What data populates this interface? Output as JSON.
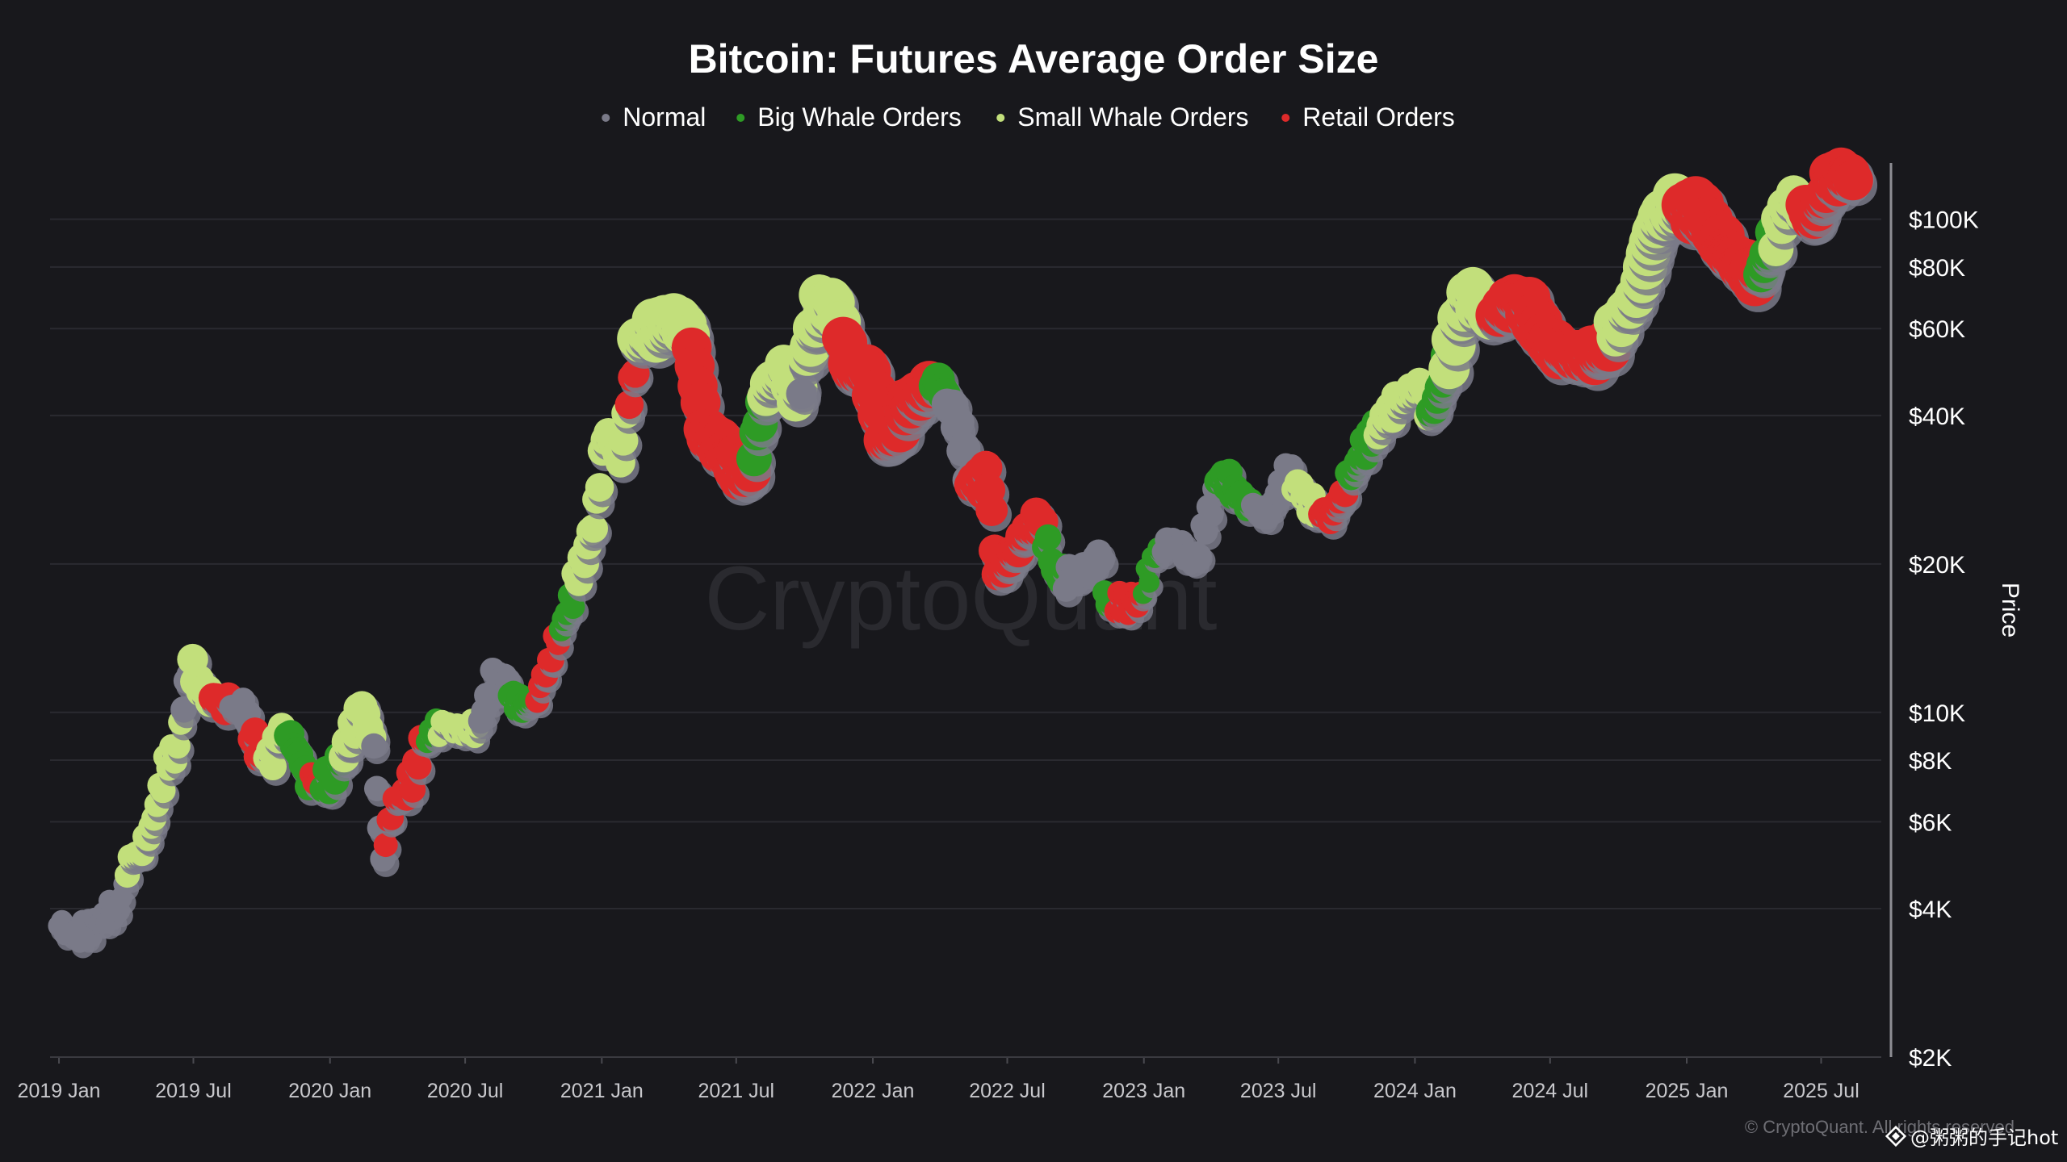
{
  "chart_data": {
    "type": "scatter",
    "title": "Bitcoin: Futures Average Order Size",
    "ylabel": "Price",
    "xlabel": "",
    "y_scale": "log",
    "ylim": [
      2000,
      130000
    ],
    "xlim": [
      "2018-12-20",
      "2025-09-20"
    ],
    "grid": "horizontal",
    "legend_position": "top-center",
    "watermark": "CryptoQuant",
    "copyright": "© CryptoQuant. All rights reserved",
    "credit": "@粥粥的手记hot",
    "y_ticks": [
      {
        "value": 2000,
        "label": "$2K"
      },
      {
        "value": 4000,
        "label": "$4K"
      },
      {
        "value": 6000,
        "label": "$6K"
      },
      {
        "value": 8000,
        "label": "$8K"
      },
      {
        "value": 10000,
        "label": "$10K"
      },
      {
        "value": 20000,
        "label": "$20K"
      },
      {
        "value": 40000,
        "label": "$40K"
      },
      {
        "value": 60000,
        "label": "$60K"
      },
      {
        "value": 80000,
        "label": "$80K"
      },
      {
        "value": 100000,
        "label": "$100K"
      }
    ],
    "x_ticks": [
      {
        "date": "2019-01-01",
        "label": "2019 Jan"
      },
      {
        "date": "2019-07-01",
        "label": "2019 Jul"
      },
      {
        "date": "2020-01-01",
        "label": "2020 Jan"
      },
      {
        "date": "2020-07-01",
        "label": "2020 Jul"
      },
      {
        "date": "2021-01-01",
        "label": "2021 Jan"
      },
      {
        "date": "2021-07-01",
        "label": "2021 Jul"
      },
      {
        "date": "2022-01-01",
        "label": "2022 Jan"
      },
      {
        "date": "2022-07-01",
        "label": "2022 Jul"
      },
      {
        "date": "2023-01-01",
        "label": "2023 Jan"
      },
      {
        "date": "2023-07-01",
        "label": "2023 Jul"
      },
      {
        "date": "2024-01-01",
        "label": "2024 Jan"
      },
      {
        "date": "2024-07-01",
        "label": "2024 Jul"
      },
      {
        "date": "2025-01-01",
        "label": "2025 Jan"
      },
      {
        "date": "2025-07-01",
        "label": "2025 Jul"
      }
    ],
    "series": [
      {
        "name": "Normal",
        "color": "#7a7a88"
      },
      {
        "name": "Big Whale Orders",
        "color": "#2e9b25"
      },
      {
        "name": "Small Whale Orders",
        "color": "#c2df7b"
      },
      {
        "name": "Retail Orders",
        "color": "#de2a2a"
      }
    ],
    "price_path": [
      [
        "2019-01-01",
        3700
      ],
      [
        "2019-01-20",
        3550
      ],
      [
        "2019-02-10",
        3650
      ],
      [
        "2019-03-01",
        3850
      ],
      [
        "2019-03-25",
        4050
      ],
      [
        "2019-04-05",
        5000
      ],
      [
        "2019-04-25",
        5300
      ],
      [
        "2019-05-10",
        6200
      ],
      [
        "2019-05-25",
        7800
      ],
      [
        "2019-06-10",
        8500
      ],
      [
        "2019-06-26",
        12500
      ],
      [
        "2019-07-15",
        11000
      ],
      [
        "2019-08-05",
        10500
      ],
      [
        "2019-08-25",
        10300
      ],
      [
        "2019-09-10",
        10100
      ],
      [
        "2019-09-25",
        8400
      ],
      [
        "2019-10-15",
        8100
      ],
      [
        "2019-10-28",
        9300
      ],
      [
        "2019-11-15",
        8600
      ],
      [
        "2019-12-01",
        7400
      ],
      [
        "2019-12-18",
        7100
      ],
      [
        "2020-01-05",
        7400
      ],
      [
        "2020-01-25",
        8600
      ],
      [
        "2020-02-13",
        10300
      ],
      [
        "2020-02-28",
        8700
      ],
      [
        "2020-03-12",
        5000
      ],
      [
        "2020-03-25",
        6500
      ],
      [
        "2020-04-20",
        7200
      ],
      [
        "2020-05-05",
        8800
      ],
      [
        "2020-06-01",
        9500
      ],
      [
        "2020-06-25",
        9200
      ],
      [
        "2020-07-20",
        9300
      ],
      [
        "2020-08-05",
        11500
      ],
      [
        "2020-08-25",
        11600
      ],
      [
        "2020-09-10",
        10300
      ],
      [
        "2020-10-05",
        10700
      ],
      [
        "2020-10-25",
        13000
      ],
      [
        "2020-11-15",
        16000
      ],
      [
        "2020-12-01",
        19000
      ],
      [
        "2020-12-20",
        23500
      ],
      [
        "2021-01-08",
        38000
      ],
      [
        "2021-01-25",
        32000
      ],
      [
        "2021-02-10",
        46000
      ],
      [
        "2021-02-21",
        57000
      ],
      [
        "2021-03-13",
        60000
      ],
      [
        "2021-04-14",
        63000
      ],
      [
        "2021-05-01",
        57000
      ],
      [
        "2021-05-19",
        37000
      ],
      [
        "2021-06-10",
        35000
      ],
      [
        "2021-06-25",
        32000
      ],
      [
        "2021-07-20",
        30500
      ],
      [
        "2021-08-10",
        45000
      ],
      [
        "2021-09-05",
        50500
      ],
      [
        "2021-09-21",
        42500
      ],
      [
        "2021-10-20",
        66000
      ],
      [
        "2021-11-10",
        67500
      ],
      [
        "2021-12-05",
        49000
      ],
      [
        "2021-12-25",
        50000
      ],
      [
        "2022-01-22",
        35000
      ],
      [
        "2022-02-15",
        42000
      ],
      [
        "2022-03-28",
        47000
      ],
      [
        "2022-04-25",
        39000
      ],
      [
        "2022-05-12",
        29000
      ],
      [
        "2022-06-05",
        30000
      ],
      [
        "2022-06-18",
        19000
      ],
      [
        "2022-07-10",
        21000
      ],
      [
        "2022-07-28",
        23500
      ],
      [
        "2022-08-14",
        24500
      ],
      [
        "2022-09-06",
        18800
      ],
      [
        "2022-10-10",
        19200
      ],
      [
        "2022-11-05",
        21000
      ],
      [
        "2022-11-10",
        16500
      ],
      [
        "2022-12-25",
        16800
      ],
      [
        "2023-01-15",
        20800
      ],
      [
        "2023-02-10",
        22500
      ],
      [
        "2023-03-10",
        20000
      ],
      [
        "2023-04-14",
        30500
      ],
      [
        "2023-05-15",
        27000
      ],
      [
        "2023-06-15",
        25000
      ],
      [
        "2023-07-14",
        31000
      ],
      [
        "2023-08-17",
        26000
      ],
      [
        "2023-09-11",
        25000
      ],
      [
        "2023-10-24",
        34500
      ],
      [
        "2023-12-05",
        42000
      ],
      [
        "2024-01-10",
        46500
      ],
      [
        "2024-01-23",
        39500
      ],
      [
        "2024-02-15",
        52000
      ],
      [
        "2024-03-14",
        72000
      ],
      [
        "2024-04-13",
        63000
      ],
      [
        "2024-05-21",
        70000
      ],
      [
        "2024-07-05",
        55000
      ],
      [
        "2024-08-05",
        53000
      ],
      [
        "2024-09-06",
        53000
      ],
      [
        "2024-10-29",
        72000
      ],
      [
        "2024-11-22",
        99000
      ],
      [
        "2024-12-17",
        107000
      ],
      [
        "2025-01-21",
        104000
      ],
      [
        "2025-02-25",
        86000
      ],
      [
        "2025-04-07",
        76000
      ],
      [
        "2025-05-22",
        111000
      ],
      [
        "2025-06-22",
        100000
      ],
      [
        "2025-07-14",
        122000
      ],
      [
        "2025-08-14",
        123000
      ]
    ],
    "segments": [
      {
        "start": "2019-01-01",
        "end": "2019-04-01",
        "series": "Normal",
        "size": 0.8
      },
      {
        "start": "2019-04-01",
        "end": "2019-06-15",
        "series": "Small Whale Orders",
        "size": 1.1
      },
      {
        "start": "2019-06-15",
        "end": "2019-06-27",
        "series": "Normal",
        "size": 1.2
      },
      {
        "start": "2019-06-27",
        "end": "2019-07-28",
        "series": "Small Whale Orders",
        "size": 1.6
      },
      {
        "start": "2019-07-28",
        "end": "2019-08-20",
        "series": "Retail Orders",
        "size": 1.5
      },
      {
        "start": "2019-08-20",
        "end": "2019-09-15",
        "series": "Normal",
        "size": 1.0
      },
      {
        "start": "2019-09-15",
        "end": "2019-10-05",
        "series": "Retail Orders",
        "size": 1.4
      },
      {
        "start": "2019-10-05",
        "end": "2019-11-05",
        "series": "Small Whale Orders",
        "size": 1.3
      },
      {
        "start": "2019-11-05",
        "end": "2019-12-05",
        "series": "Big Whale Orders",
        "size": 1.3
      },
      {
        "start": "2019-12-05",
        "end": "2019-12-20",
        "series": "Retail Orders",
        "size": 1.0
      },
      {
        "start": "2019-12-20",
        "end": "2020-01-20",
        "series": "Big Whale Orders",
        "size": 1.3
      },
      {
        "start": "2020-01-20",
        "end": "2020-02-28",
        "series": "Small Whale Orders",
        "size": 1.6
      },
      {
        "start": "2020-02-28",
        "end": "2020-03-13",
        "series": "Normal",
        "size": 1.1
      },
      {
        "start": "2020-03-13",
        "end": "2020-04-10",
        "series": "Retail Orders",
        "size": 1.0
      },
      {
        "start": "2020-04-10",
        "end": "2020-05-10",
        "series": "Retail Orders",
        "size": 1.2
      },
      {
        "start": "2020-05-10",
        "end": "2020-05-25",
        "series": "Big Whale Orders",
        "size": 0.9
      },
      {
        "start": "2020-05-25",
        "end": "2020-07-20",
        "series": "Small Whale Orders",
        "size": 0.9
      },
      {
        "start": "2020-07-20",
        "end": "2020-08-30",
        "series": "Normal",
        "size": 1.1
      },
      {
        "start": "2020-08-30",
        "end": "2020-10-05",
        "series": "Big Whale Orders",
        "size": 1.1
      },
      {
        "start": "2020-10-05",
        "end": "2020-11-05",
        "series": "Retail Orders",
        "size": 1.0
      },
      {
        "start": "2020-11-05",
        "end": "2020-11-25",
        "series": "Big Whale Orders",
        "size": 1.0
      },
      {
        "start": "2020-11-25",
        "end": "2021-01-01",
        "series": "Small Whale Orders",
        "size": 1.4
      },
      {
        "start": "2021-01-01",
        "end": "2021-02-05",
        "series": "Small Whale Orders",
        "size": 1.5
      },
      {
        "start": "2021-02-05",
        "end": "2021-02-18",
        "series": "Retail Orders",
        "size": 1.4
      },
      {
        "start": "2021-02-18",
        "end": "2021-05-01",
        "series": "Small Whale Orders",
        "size": 2.6
      },
      {
        "start": "2021-05-01",
        "end": "2021-07-25",
        "series": "Retail Orders",
        "size": 2.4
      },
      {
        "start": "2021-07-25",
        "end": "2021-08-10",
        "series": "Big Whale Orders",
        "size": 2.0
      },
      {
        "start": "2021-08-10",
        "end": "2021-09-25",
        "series": "Small Whale Orders",
        "size": 2.2
      },
      {
        "start": "2021-09-25",
        "end": "2021-10-05",
        "series": "Normal",
        "size": 1.6
      },
      {
        "start": "2021-10-05",
        "end": "2021-11-20",
        "series": "Small Whale Orders",
        "size": 2.5
      },
      {
        "start": "2021-11-20",
        "end": "2022-03-25",
        "series": "Retail Orders",
        "size": 2.6
      },
      {
        "start": "2022-03-25",
        "end": "2022-04-10",
        "series": "Big Whale Orders",
        "size": 1.8
      },
      {
        "start": "2022-04-10",
        "end": "2022-05-10",
        "series": "Normal",
        "size": 1.6
      },
      {
        "start": "2022-05-10",
        "end": "2022-06-10",
        "series": "Retail Orders",
        "size": 1.8
      },
      {
        "start": "2022-06-10",
        "end": "2022-08-20",
        "series": "Retail Orders",
        "size": 1.7
      },
      {
        "start": "2022-08-20",
        "end": "2022-09-15",
        "series": "Big Whale Orders",
        "size": 1.2
      },
      {
        "start": "2022-09-15",
        "end": "2022-11-08",
        "series": "Normal",
        "size": 1.2
      },
      {
        "start": "2022-11-08",
        "end": "2022-11-25",
        "series": "Big Whale Orders",
        "size": 1.0
      },
      {
        "start": "2022-11-25",
        "end": "2022-12-30",
        "series": "Retail Orders",
        "size": 1.0
      },
      {
        "start": "2022-12-30",
        "end": "2023-01-25",
        "series": "Big Whale Orders",
        "size": 0.7
      },
      {
        "start": "2023-01-25",
        "end": "2023-04-10",
        "series": "Normal",
        "size": 1.0
      },
      {
        "start": "2023-04-10",
        "end": "2023-05-25",
        "series": "Big Whale Orders",
        "size": 1.2
      },
      {
        "start": "2023-05-25",
        "end": "2023-07-20",
        "series": "Normal",
        "size": 1.0
      },
      {
        "start": "2023-07-20",
        "end": "2023-08-25",
        "series": "Small Whale Orders",
        "size": 1.2
      },
      {
        "start": "2023-08-25",
        "end": "2023-10-01",
        "series": "Retail Orders",
        "size": 1.2
      },
      {
        "start": "2023-10-01",
        "end": "2023-11-10",
        "series": "Big Whale Orders",
        "size": 1.2
      },
      {
        "start": "2023-11-10",
        "end": "2024-01-20",
        "series": "Small Whale Orders",
        "size": 1.4
      },
      {
        "start": "2024-01-20",
        "end": "2024-02-15",
        "series": "Big Whale Orders",
        "size": 1.6
      },
      {
        "start": "2024-02-15",
        "end": "2024-04-20",
        "series": "Small Whale Orders",
        "size": 2.5
      },
      {
        "start": "2024-04-20",
        "end": "2024-09-20",
        "series": "Retail Orders",
        "size": 2.6
      },
      {
        "start": "2024-09-20",
        "end": "2024-11-05",
        "series": "Small Whale Orders",
        "size": 2.2
      },
      {
        "start": "2024-11-05",
        "end": "2024-12-25",
        "series": "Small Whale Orders",
        "size": 2.8
      },
      {
        "start": "2024-12-25",
        "end": "2025-04-10",
        "series": "Retail Orders",
        "size": 2.8
      },
      {
        "start": "2025-04-10",
        "end": "2025-05-01",
        "series": "Big Whale Orders",
        "size": 2.0
      },
      {
        "start": "2025-05-01",
        "end": "2025-06-10",
        "series": "Small Whale Orders",
        "size": 2.0
      },
      {
        "start": "2025-06-10",
        "end": "2025-08-20",
        "series": "Retail Orders",
        "size": 2.4
      }
    ]
  }
}
